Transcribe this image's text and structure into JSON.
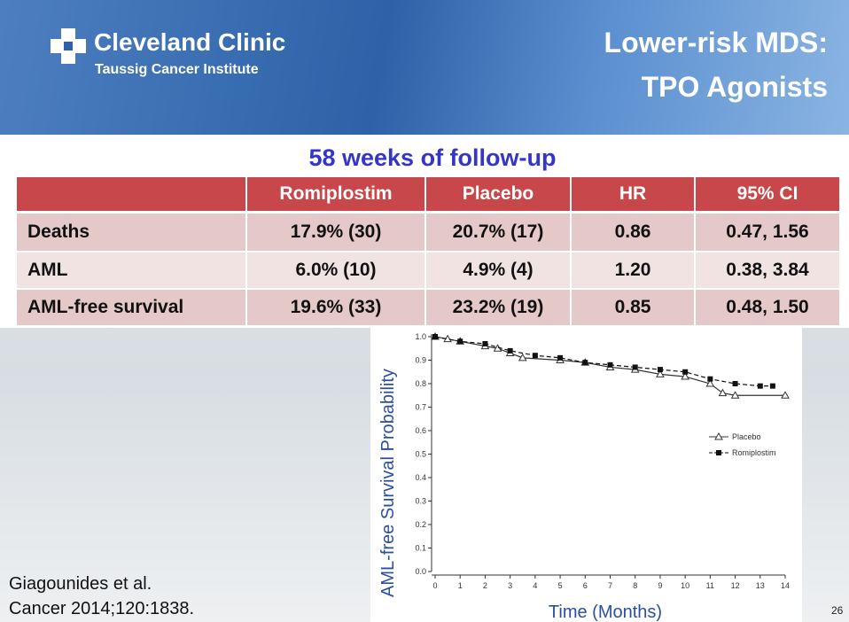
{
  "header": {
    "logo_title": "Cleveland Clinic",
    "logo_subtitle": "Taussig Cancer Institute",
    "title_lines": [
      "Lower-risk MDS:",
      "TPO Agonists"
    ]
  },
  "subtitle": "58 weeks of follow-up",
  "table": {
    "columns": [
      "",
      "Romiplostim",
      "Placebo",
      "HR",
      "95% CI"
    ],
    "rows": [
      [
        "Deaths",
        "17.9% (30)",
        "20.7% (17)",
        "0.86",
        "0.47, 1.56"
      ],
      [
        "AML",
        "6.0% (10)",
        "4.9% (4)",
        "1.20",
        "0.38, 3.84"
      ],
      [
        "AML-free survival",
        "19.6% (33)",
        "23.2% (19)",
        "0.85",
        "0.48, 1.50"
      ]
    ]
  },
  "chart_data": {
    "type": "line",
    "x_label": "Time (Months)",
    "y_label": "AML-free Survival Probability",
    "xlim": [
      0,
      14
    ],
    "xticks": [
      0,
      1,
      2,
      3,
      4,
      5,
      6,
      7,
      8,
      9,
      10,
      11,
      12,
      13,
      14
    ],
    "ylim": [
      0,
      1
    ],
    "yticks": [
      {
        "value": 0,
        "label": "0.0"
      },
      0.1,
      0.2,
      0.3,
      0.4,
      0.5,
      0.6,
      0.7,
      0.8,
      0.9,
      {
        "value": 1,
        "label": "1.0"
      }
    ],
    "series": [
      {
        "name": "Placebo",
        "color": "#333333",
        "marker": "triangle",
        "dashed": false,
        "x": [
          0,
          0.5,
          1,
          2,
          2.5,
          3,
          3.5,
          5,
          6,
          7,
          8,
          9,
          10,
          11,
          11.5,
          12,
          14
        ],
        "values": [
          1,
          0.99,
          0.98,
          0.96,
          0.95,
          0.93,
          0.91,
          0.9,
          0.89,
          0.87,
          0.86,
          0.84,
          0.83,
          0.8,
          0.76,
          0.75,
          0.75
        ]
      },
      {
        "name": "Romiplostim",
        "color": "#111111",
        "marker": "square",
        "dashed": true,
        "x": [
          0,
          1,
          2,
          3,
          4,
          5,
          6,
          7,
          8,
          9,
          10,
          11,
          12,
          13,
          13.5
        ],
        "values": [
          1,
          0.98,
          0.97,
          0.94,
          0.92,
          0.91,
          0.89,
          0.88,
          0.87,
          0.86,
          0.85,
          0.82,
          0.8,
          0.79,
          0.79
        ]
      }
    ]
  },
  "citation": [
    "Giagounides et al.",
    "Cancer 2014;120:1838."
  ],
  "page_number": "26"
}
